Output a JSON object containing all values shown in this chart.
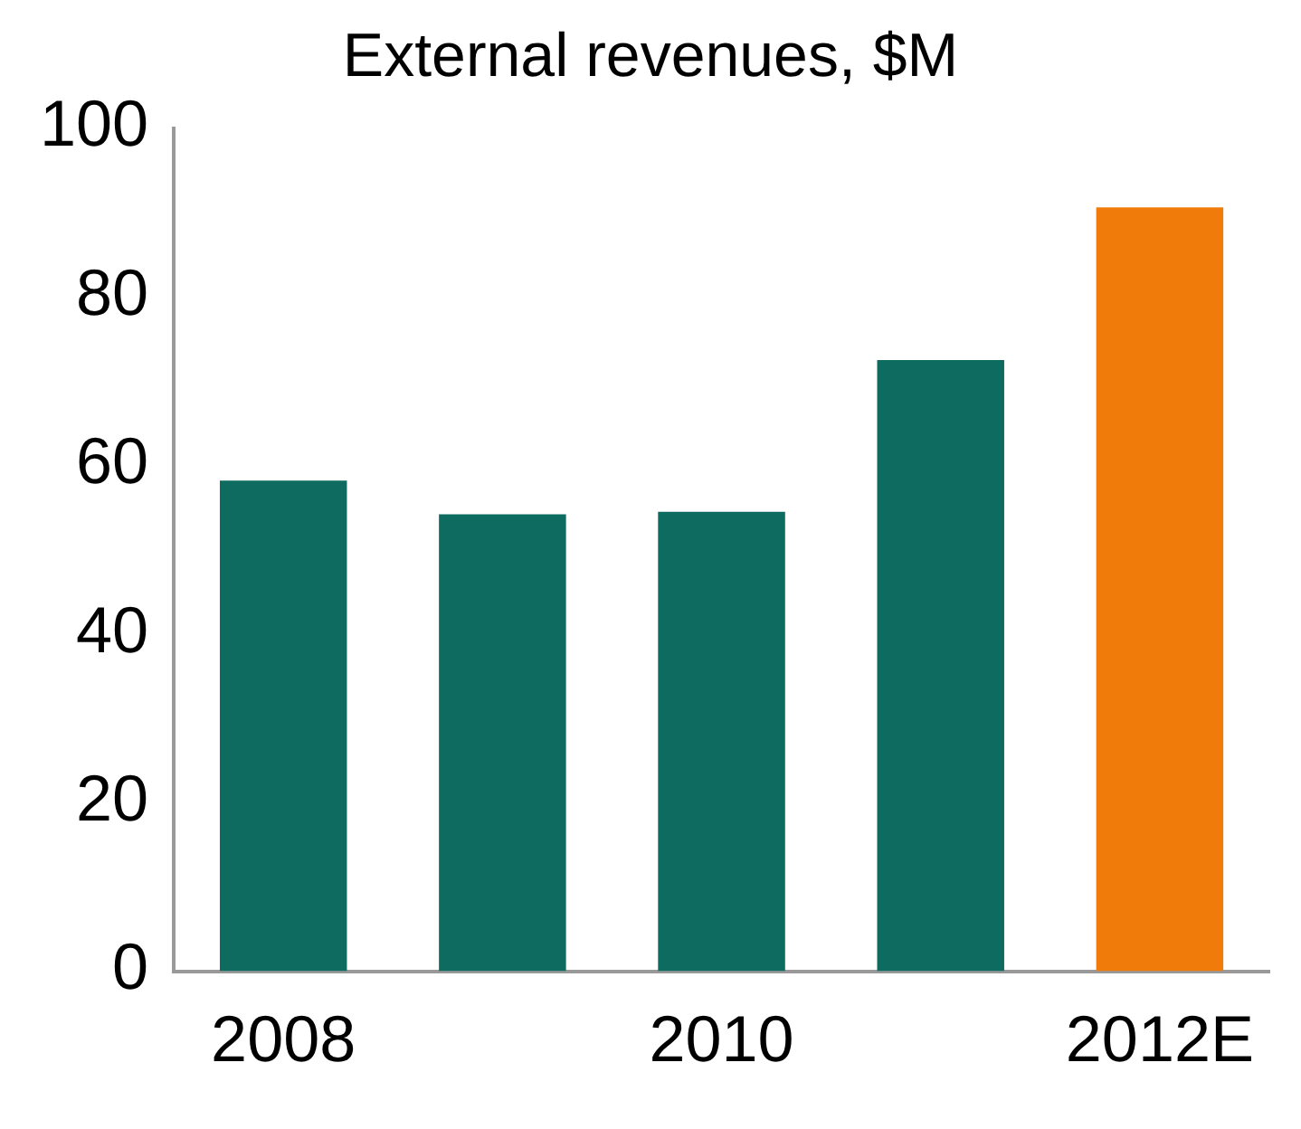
{
  "chart_data": {
    "type": "bar",
    "title": "External revenues, $M",
    "categories": [
      "2008",
      null,
      "2010",
      null,
      "2012E"
    ],
    "values": [
      58.2,
      54.2,
      54.5,
      72.5,
      90.6
    ],
    "colors": [
      "#0e6b60",
      "#0e6b60",
      "#0e6b60",
      "#0e6b60",
      "#f07a0a"
    ],
    "ylim": [
      0,
      100
    ],
    "yticks": [
      0,
      20,
      40,
      60,
      80,
      100
    ],
    "grid": false,
    "legend": false
  }
}
